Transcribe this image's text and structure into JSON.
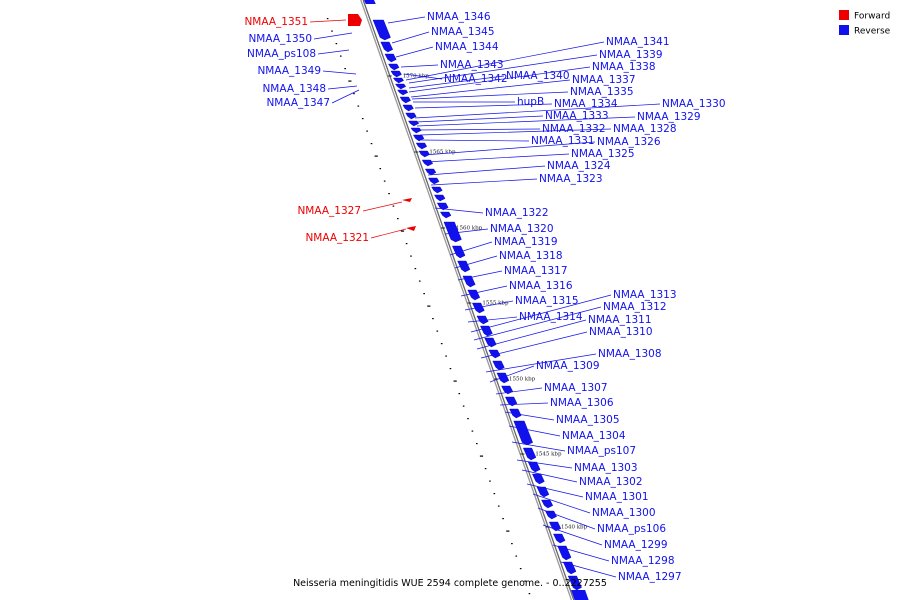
{
  "caption": "Neisseria meningitidis WUE 2594 complete genome. - 0..2227255",
  "legend": [
    {
      "label": "Forward",
      "color": "#ee0000"
    },
    {
      "label": "Reverse",
      "color": "#1111ee"
    }
  ],
  "colors": {
    "forward": "#ee0000",
    "reverse": "#1111ee",
    "axis": "#999999",
    "tick": "#000000"
  },
  "ticks": [
    "1570 kbp",
    "1565 kbp",
    "1560 kbp",
    "1555 kbp",
    "1550 kbp",
    "1545 kbp",
    "1540 kbp"
  ],
  "genes": [
    {
      "label": "NMAA_1351",
      "strand": "forward"
    },
    {
      "label": "NMAA_1350",
      "strand": "reverse"
    },
    {
      "label": "NMAA_ps108",
      "strand": "reverse"
    },
    {
      "label": "NMAA_1349",
      "strand": "reverse"
    },
    {
      "label": "NMAA_1348",
      "strand": "reverse"
    },
    {
      "label": "NMAA_1347",
      "strand": "reverse"
    },
    {
      "label": "NMAA_1327",
      "strand": "forward"
    },
    {
      "label": "NMAA_1321",
      "strand": "forward"
    },
    {
      "label": "NMAA_1346",
      "strand": "reverse"
    },
    {
      "label": "NMAA_1345",
      "strand": "reverse"
    },
    {
      "label": "NMAA_1344",
      "strand": "reverse"
    },
    {
      "label": "NMAA_1343",
      "strand": "reverse"
    },
    {
      "label": "NMAA_1342",
      "strand": "reverse"
    },
    {
      "label": "NMAA_1340",
      "strand": "reverse"
    },
    {
      "label": "hupB",
      "strand": "reverse"
    },
    {
      "label": "NMAA_1341",
      "strand": "reverse"
    },
    {
      "label": "NMAA_1339",
      "strand": "reverse"
    },
    {
      "label": "NMAA_1338",
      "strand": "reverse"
    },
    {
      "label": "NMAA_1337",
      "strand": "reverse"
    },
    {
      "label": "NMAA_1335",
      "strand": "reverse"
    },
    {
      "label": "NMAA_1334",
      "strand": "reverse"
    },
    {
      "label": "NMAA_1330",
      "strand": "reverse"
    },
    {
      "label": "NMAA_1333",
      "strand": "reverse"
    },
    {
      "label": "NMAA_1329",
      "strand": "reverse"
    },
    {
      "label": "NMAA_1332",
      "strand": "reverse"
    },
    {
      "label": "NMAA_1328",
      "strand": "reverse"
    },
    {
      "label": "NMAA_1331",
      "strand": "reverse"
    },
    {
      "label": "NMAA_1326",
      "strand": "reverse"
    },
    {
      "label": "NMAA_1325",
      "strand": "reverse"
    },
    {
      "label": "NMAA_1324",
      "strand": "reverse"
    },
    {
      "label": "NMAA_1323",
      "strand": "reverse"
    },
    {
      "label": "NMAA_1322",
      "strand": "reverse"
    },
    {
      "label": "NMAA_1320",
      "strand": "reverse"
    },
    {
      "label": "NMAA_1319",
      "strand": "reverse"
    },
    {
      "label": "NMAA_1318",
      "strand": "reverse"
    },
    {
      "label": "NMAA_1317",
      "strand": "reverse"
    },
    {
      "label": "NMAA_1316",
      "strand": "reverse"
    },
    {
      "label": "NMAA_1315",
      "strand": "reverse"
    },
    {
      "label": "NMAA_1314",
      "strand": "reverse"
    },
    {
      "label": "NMAA_1313",
      "strand": "reverse"
    },
    {
      "label": "NMAA_1312",
      "strand": "reverse"
    },
    {
      "label": "NMAA_1311",
      "strand": "reverse"
    },
    {
      "label": "NMAA_1310",
      "strand": "reverse"
    },
    {
      "label": "NMAA_1308",
      "strand": "reverse"
    },
    {
      "label": "NMAA_1309",
      "strand": "reverse"
    },
    {
      "label": "NMAA_1307",
      "strand": "reverse"
    },
    {
      "label": "NMAA_1306",
      "strand": "reverse"
    },
    {
      "label": "NMAA_1305",
      "strand": "reverse"
    },
    {
      "label": "NMAA_1304",
      "strand": "reverse"
    },
    {
      "label": "NMAA_ps107",
      "strand": "reverse"
    },
    {
      "label": "NMAA_1303",
      "strand": "reverse"
    },
    {
      "label": "NMAA_1302",
      "strand": "reverse"
    },
    {
      "label": "NMAA_1301",
      "strand": "reverse"
    },
    {
      "label": "NMAA_1300",
      "strand": "reverse"
    },
    {
      "label": "NMAA_ps106",
      "strand": "reverse"
    },
    {
      "label": "NMAA_1299",
      "strand": "reverse"
    },
    {
      "label": "NMAA_1298",
      "strand": "reverse"
    },
    {
      "label": "NMAA_1297",
      "strand": "reverse"
    }
  ]
}
